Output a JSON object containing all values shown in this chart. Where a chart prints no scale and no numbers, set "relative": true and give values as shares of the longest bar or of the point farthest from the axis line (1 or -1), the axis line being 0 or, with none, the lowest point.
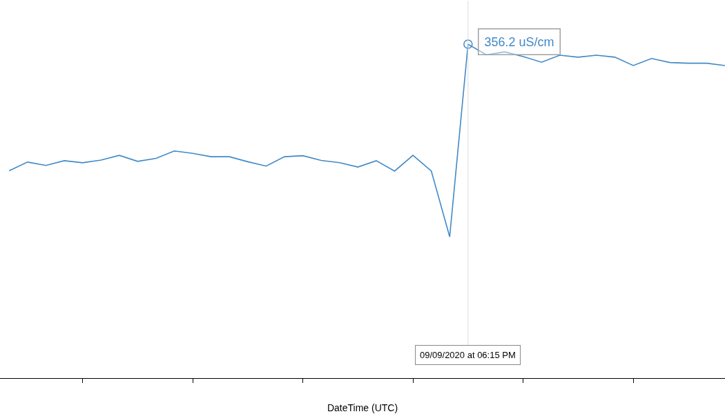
{
  "chart_data": {
    "type": "line",
    "xlabel": "DateTime (UTC)",
    "relative": true,
    "color": "#4189c7",
    "categories": [
      null,
      null,
      null,
      null,
      null,
      null,
      null,
      null,
      null,
      null,
      null,
      null,
      null,
      null,
      null,
      null,
      null,
      null,
      null,
      null,
      null,
      null,
      null,
      null,
      null,
      null,
      null,
      null,
      null,
      null,
      null,
      null,
      null,
      null,
      null,
      null,
      null,
      null,
      null,
      null
    ],
    "values": [
      0.621,
      0.647,
      0.637,
      0.651,
      0.645,
      0.653,
      0.667,
      0.649,
      0.658,
      0.68,
      0.673,
      0.663,
      0.663,
      0.648,
      0.635,
      0.663,
      0.666,
      0.652,
      0.645,
      0.632,
      0.651,
      0.62,
      0.667,
      0.62,
      0.423,
      1,
      0.968,
      0.977,
      0.963,
      0.946,
      0.967,
      0.961,
      0.967,
      0.961,
      0.936,
      0.957,
      0.945,
      0.943,
      0.943,
      0.936
    ],
    "tick_labels": false,
    "annotations": [
      "356.2 uS/cm",
      "09/09/2020 at 06:15 PM"
    ]
  }
}
